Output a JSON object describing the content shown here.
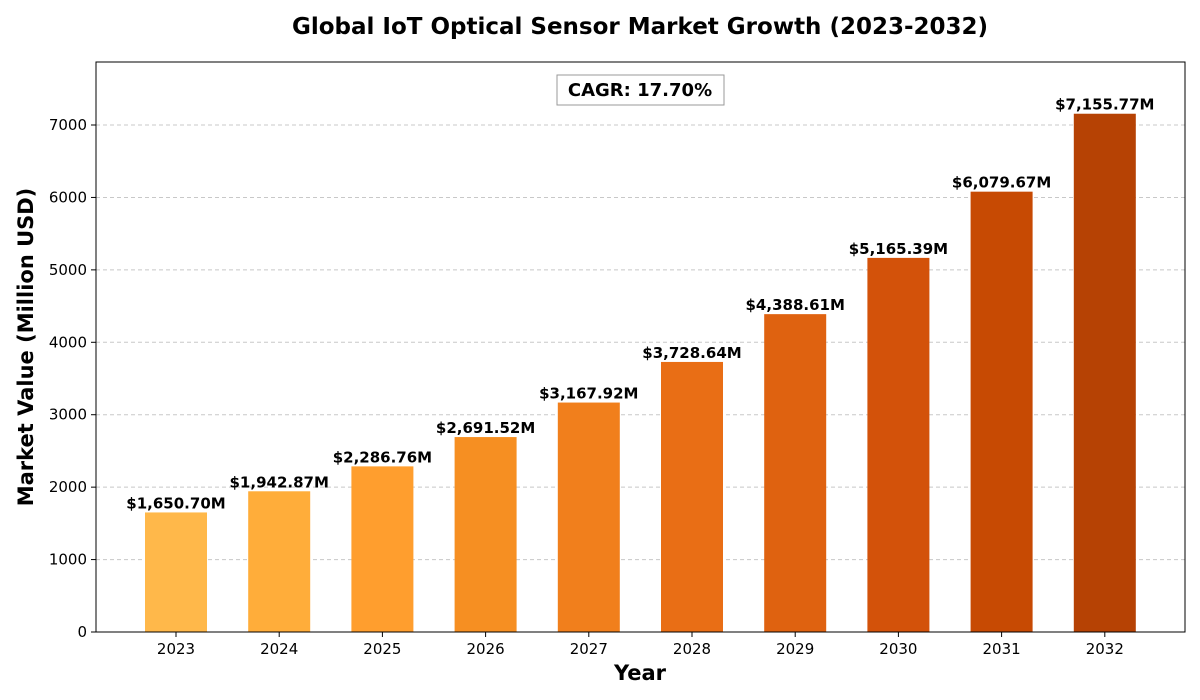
{
  "chart_data": {
    "type": "bar",
    "title": "Global IoT Optical Sensor Market Growth (2023-2032)",
    "xlabel": "Year",
    "ylabel": "Market Value (Million USD)",
    "categories": [
      "2023",
      "2024",
      "2025",
      "2026",
      "2027",
      "2028",
      "2029",
      "2030",
      "2031",
      "2032"
    ],
    "values": [
      1650.7,
      1942.87,
      2286.76,
      2691.52,
      3167.92,
      3728.64,
      4388.61,
      5165.39,
      6079.67,
      7155.77
    ],
    "data_labels": [
      "$1,650.70M",
      "$1,942.87M",
      "$2,286.76M",
      "$2,691.52M",
      "$3,167.92M",
      "$3,728.64M",
      "$4,388.61M",
      "$5,165.39M",
      "$6,079.67M",
      "$7,155.77M"
    ],
    "ylim": [
      0,
      7870
    ],
    "yticks": [
      0,
      1000,
      2000,
      3000,
      4000,
      5000,
      6000,
      7000
    ],
    "grid": true,
    "annotation": "CAGR: 17.70%",
    "bar_colors": [
      "#FFB84A",
      "#FFAD3A",
      "#FF9E2E",
      "#F68F22",
      "#F17F1C",
      "#E96E15",
      "#DF6210",
      "#D3520A",
      "#C74A03",
      "#B64204"
    ]
  }
}
